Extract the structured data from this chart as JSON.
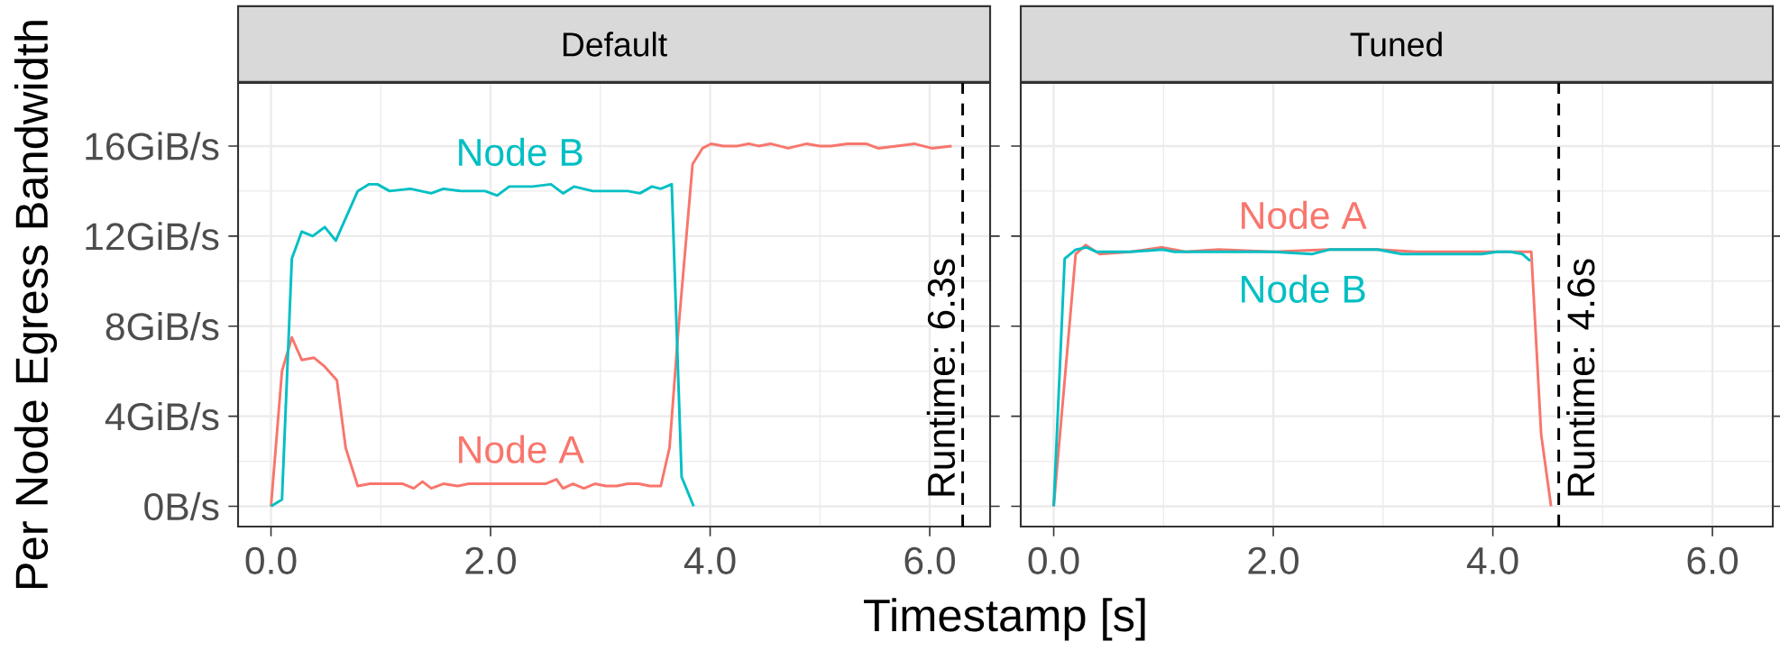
{
  "chart_data": [
    {
      "type": "line",
      "title": "Default",
      "ylabel": "Per Node Egress Bandwidth",
      "xlabel": "Timestamp [s]",
      "xlim": [
        -0.3,
        6.55
      ],
      "ylim": [
        -0.9,
        18.8
      ],
      "xticks": [
        {
          "value": 0,
          "label": "0.0"
        },
        {
          "value": 2,
          "label": "2.0"
        },
        {
          "value": 4,
          "label": "4.0"
        },
        {
          "value": 6,
          "label": "6.0"
        }
      ],
      "yticks": [
        {
          "value": 0,
          "label": "0B/s"
        },
        {
          "value": 4,
          "label": "4GiB/s"
        },
        {
          "value": 8,
          "label": "8GiB/s"
        },
        {
          "value": 12,
          "label": "12GiB/s"
        },
        {
          "value": 16,
          "label": "16GiB/s"
        }
      ],
      "grid": true,
      "series": [
        {
          "name": "Node A",
          "color": "#F8766D",
          "x": [
            0,
            0.1,
            0.19,
            0.28,
            0.39,
            0.49,
            0.6,
            0.68,
            0.79,
            0.9,
            1.0,
            1.1,
            1.2,
            1.3,
            1.38,
            1.46,
            1.57,
            1.7,
            1.8,
            1.9,
            2.0,
            2.1,
            2.2,
            2.3,
            2.4,
            2.5,
            2.6,
            2.66,
            2.75,
            2.85,
            2.95,
            3.05,
            3.15,
            3.25,
            3.35,
            3.45,
            3.55,
            3.63,
            3.71,
            3.84,
            3.93,
            4.01,
            4.12,
            4.25,
            4.35,
            4.44,
            4.55,
            4.71,
            4.88,
            5.0,
            5.1,
            5.25,
            5.42,
            5.53,
            5.7,
            5.86,
            6.02,
            6.2
          ],
          "values": [
            0,
            6.0,
            7.5,
            6.5,
            6.6,
            6.2,
            5.6,
            2.6,
            0.9,
            1.0,
            1.0,
            1.0,
            1.0,
            0.8,
            1.1,
            0.8,
            1.0,
            0.9,
            1.0,
            1.0,
            1.0,
            1.0,
            1.0,
            1.0,
            1.0,
            1.0,
            1.2,
            0.8,
            1.0,
            0.8,
            1.0,
            0.9,
            0.9,
            1.0,
            1.0,
            0.9,
            0.9,
            2.6,
            7.8,
            15.2,
            15.9,
            16.1,
            16.0,
            16.0,
            16.1,
            16.0,
            16.1,
            15.9,
            16.1,
            16.0,
            16.0,
            16.1,
            16.1,
            15.9,
            16.0,
            16.1,
            15.9,
            16.0
          ]
        },
        {
          "name": "Node B",
          "color": "#00BFC4",
          "x": [
            0,
            0.1,
            0.19,
            0.28,
            0.38,
            0.49,
            0.59,
            0.79,
            0.89,
            0.97,
            1.08,
            1.27,
            1.46,
            1.57,
            1.73,
            1.95,
            2.06,
            2.17,
            2.38,
            2.55,
            2.66,
            2.76,
            2.93,
            3.25,
            3.36,
            3.47,
            3.55,
            3.65,
            3.74,
            3.85
          ],
          "values": [
            0,
            0.3,
            11.0,
            12.2,
            12.0,
            12.4,
            11.8,
            14.0,
            14.3,
            14.3,
            14.0,
            14.1,
            13.9,
            14.1,
            14.0,
            14.0,
            13.8,
            14.2,
            14.2,
            14.3,
            13.9,
            14.2,
            14.0,
            14.0,
            13.9,
            14.2,
            14.1,
            14.3,
            1.3,
            0
          ]
        }
      ],
      "ref_lines": [
        {
          "axis": "x",
          "value": 6.3,
          "label": "Runtime: 6.3s",
          "color": "#000000",
          "line_style": "dashed"
        }
      ]
    },
    {
      "type": "line",
      "title": "Tuned",
      "xlim": [
        -0.3,
        6.55
      ],
      "ylim": [
        -0.9,
        18.8
      ],
      "xticks": [
        {
          "value": 0,
          "label": "0.0"
        },
        {
          "value": 2,
          "label": "2.0"
        },
        {
          "value": 4,
          "label": "4.0"
        },
        {
          "value": 6,
          "label": "6.0"
        }
      ],
      "yticks": [
        {
          "value": 0,
          "label": null
        },
        {
          "value": 4,
          "label": null
        },
        {
          "value": 8,
          "label": null
        },
        {
          "value": 12,
          "label": null
        },
        {
          "value": 16,
          "label": null
        }
      ],
      "tick_labels": "x",
      "grid": true,
      "series": [
        {
          "name": "Node A",
          "color": "#F8766D",
          "x": [
            0,
            0.2,
            0.29,
            0.42,
            0.7,
            0.99,
            1.2,
            1.5,
            2.0,
            2.5,
            2.95,
            3.3,
            3.7,
            4.0,
            4.35,
            4.44,
            4.53
          ],
          "values": [
            0,
            11.2,
            11.6,
            11.2,
            11.3,
            11.5,
            11.3,
            11.4,
            11.3,
            11.4,
            11.4,
            11.3,
            11.3,
            11.3,
            11.3,
            3.2,
            0
          ]
        },
        {
          "name": "Node B",
          "color": "#00BFC4",
          "x": [
            0,
            0.1,
            0.2,
            0.3,
            0.39,
            0.7,
            0.99,
            1.1,
            1.32,
            1.7,
            2.0,
            2.35,
            2.51,
            2.95,
            3.17,
            3.4,
            3.66,
            3.9,
            4.04,
            4.16,
            4.27,
            4.34
          ],
          "values": [
            0,
            11.0,
            11.4,
            11.5,
            11.3,
            11.3,
            11.4,
            11.3,
            11.3,
            11.3,
            11.3,
            11.2,
            11.4,
            11.4,
            11.2,
            11.2,
            11.2,
            11.2,
            11.3,
            11.3,
            11.2,
            10.9
          ]
        }
      ],
      "ref_lines": [
        {
          "axis": "x",
          "value": 4.6,
          "label": "Runtime: 4.6s",
          "color": "#000000",
          "line_style": "dashed"
        }
      ]
    }
  ]
}
